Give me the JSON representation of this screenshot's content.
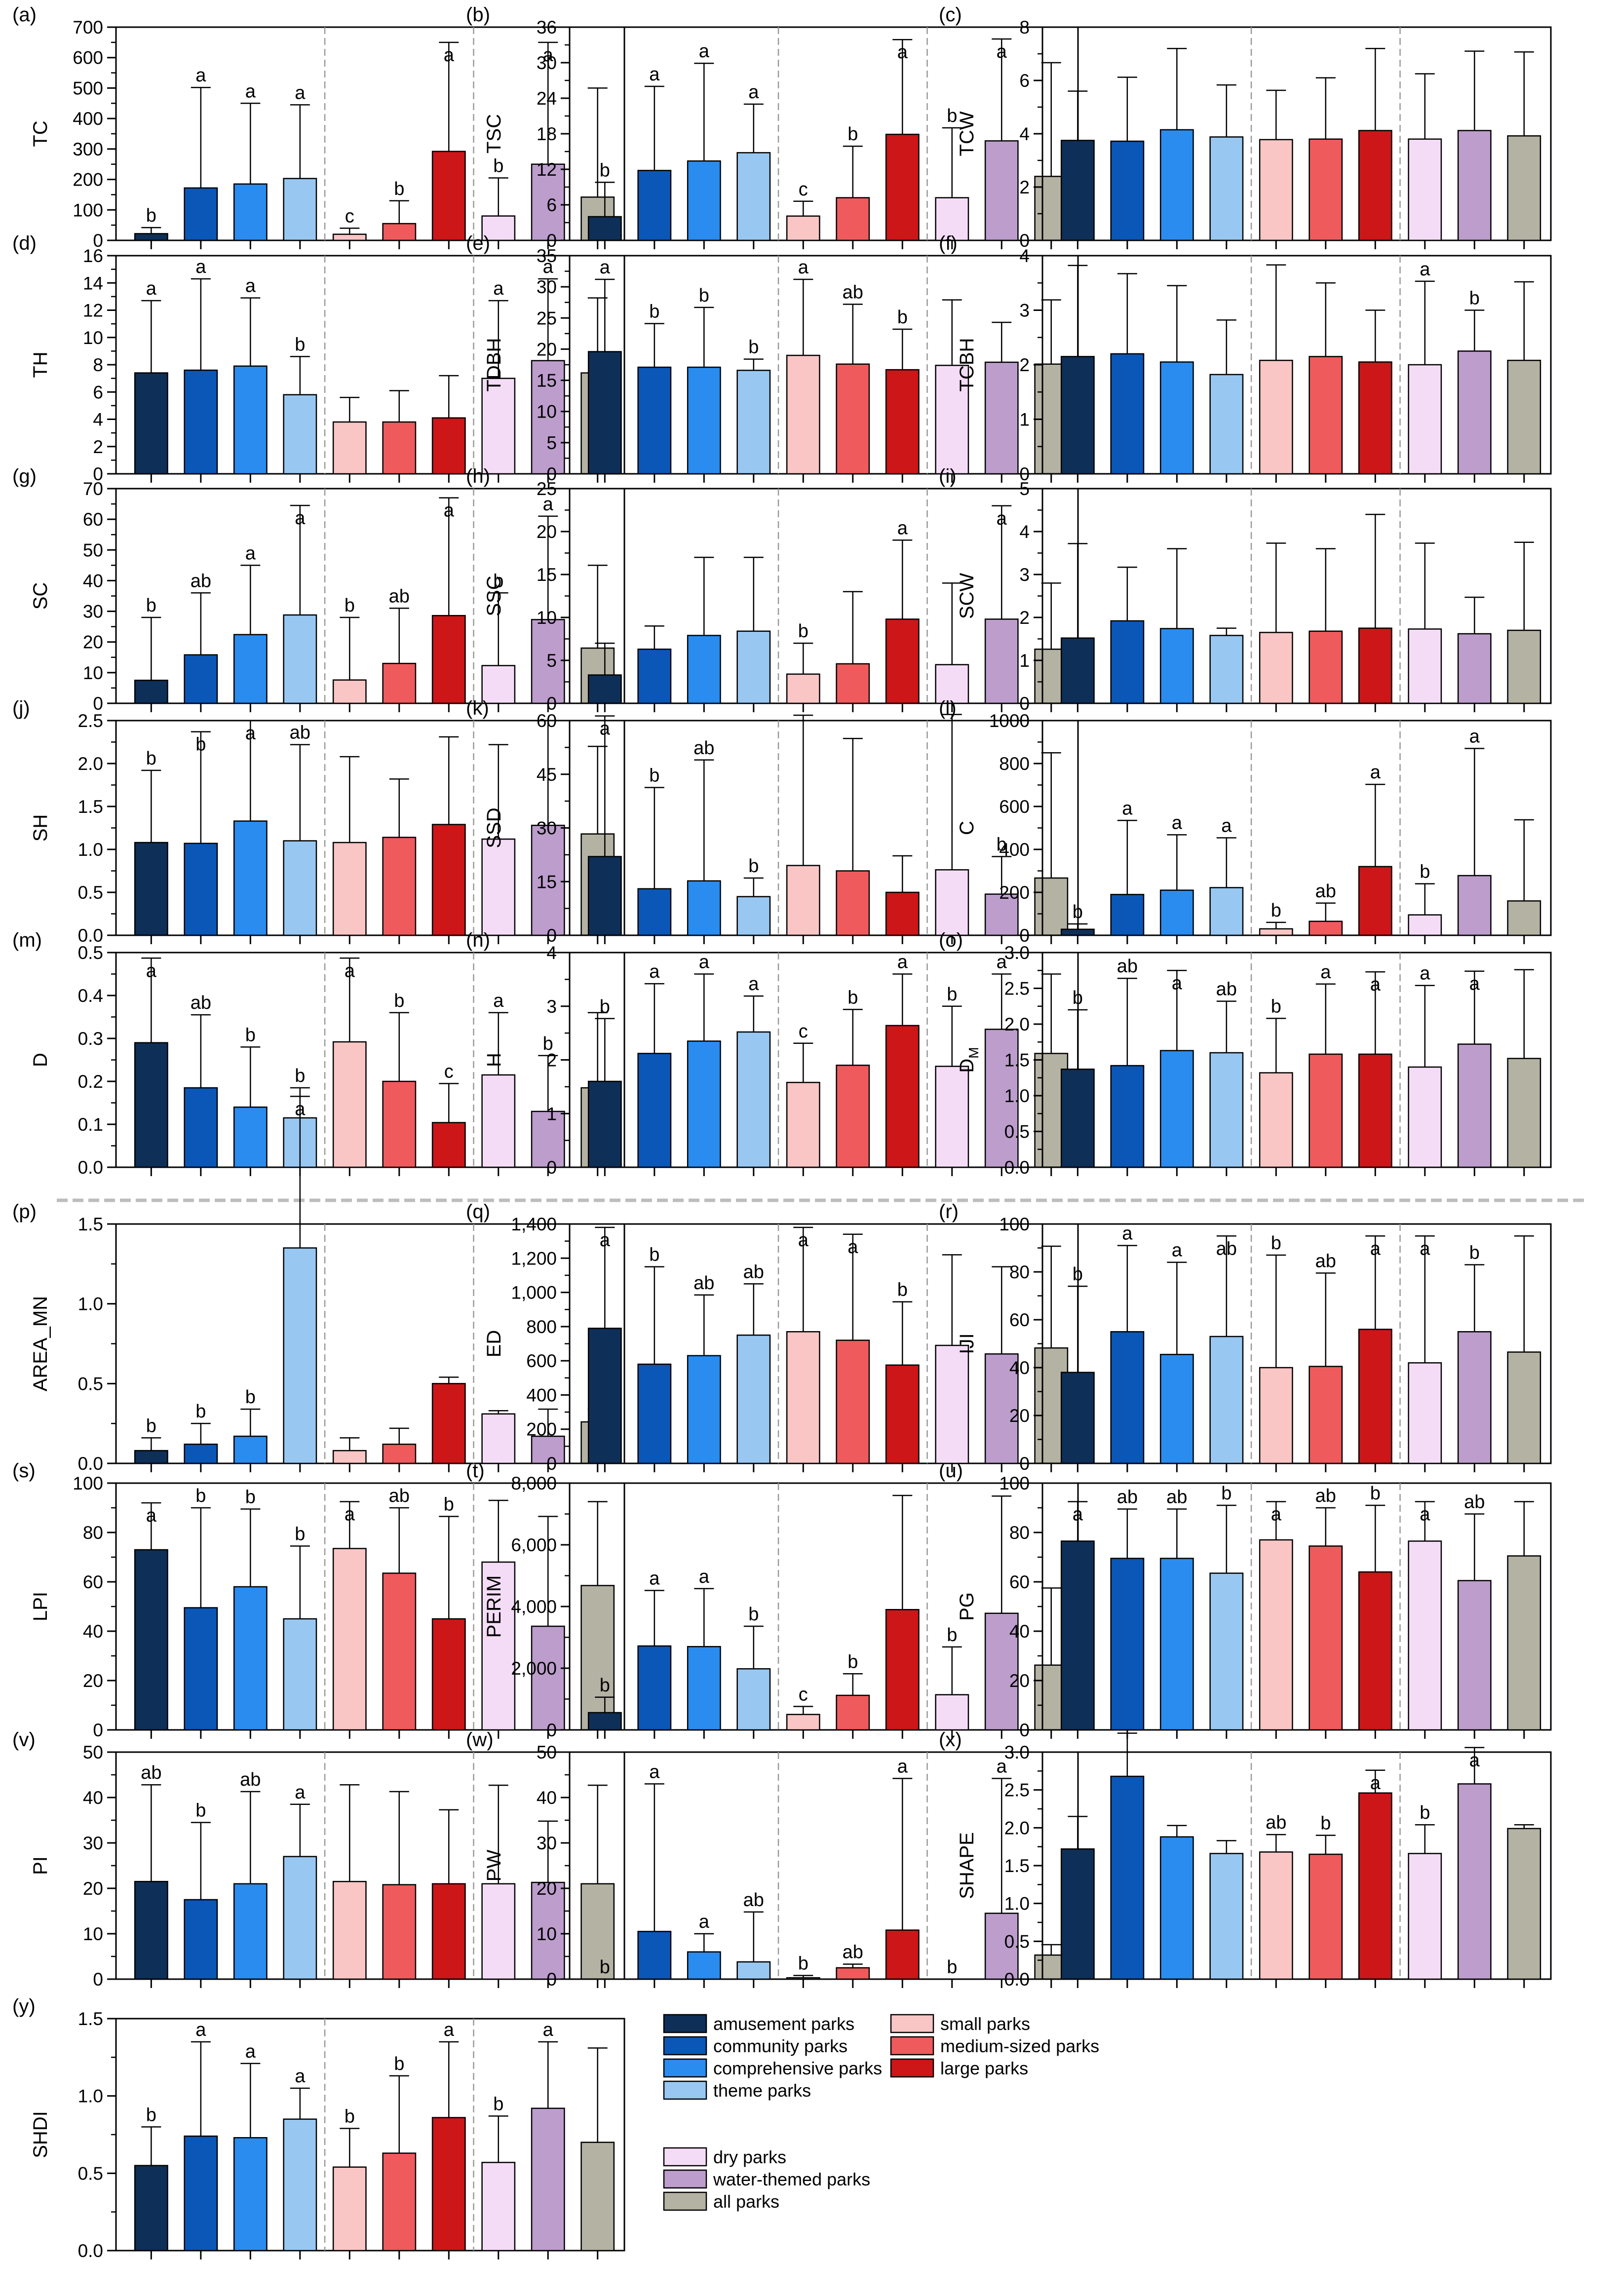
{
  "colors": {
    "amusement": "#0e2f57",
    "community": "#0a57b7",
    "comprehensive": "#2a8cee",
    "theme": "#98c8f2",
    "small": "#f9c5c5",
    "medium": "#ef5a5c",
    "large": "#cc1618",
    "dry": "#f4dcf6",
    "water": "#bc9dcc",
    "all": "#b4b2a3"
  },
  "legend": {
    "amusement": "amusement parks",
    "community": "community parks",
    "comprehensive": "comprehensive parks",
    "theme": "theme parks",
    "small": "small parks",
    "medium": "medium-sized parks",
    "large": "large parks",
    "dry": "dry parks",
    "water": "water-themed parks",
    "all": "all parks"
  },
  "chart_data": [
    {
      "panel": "(a)",
      "type": "bar",
      "ylabel": "TC",
      "ylim": [
        0,
        700
      ],
      "ticks": [
        "0",
        "100",
        "200",
        "300",
        "400",
        "500",
        "600",
        "700"
      ],
      "values": [
        22,
        172,
        185,
        203,
        20,
        55,
        292,
        80,
        250,
        142
      ],
      "errors": [
        20,
        330,
        265,
        242,
        20,
        75,
        358,
        125,
        400,
        358
      ],
      "letters": [
        "b",
        "a",
        "a",
        "a",
        "c",
        "b",
        "a",
        "b",
        "a",
        ""
      ]
    },
    {
      "panel": "(b)",
      "type": "bar",
      "ylabel": "TSC",
      "ylim": [
        0,
        36
      ],
      "ticks": [
        "0",
        "6",
        "12",
        "18",
        "24",
        "30",
        "36"
      ],
      "values": [
        4,
        11.8,
        13.4,
        14.8,
        4.1,
        7.2,
        17.9,
        7.2,
        16.8,
        10.8
      ],
      "errors": [
        5.8,
        14.2,
        16.5,
        8.2,
        2.5,
        8.7,
        16,
        11.8,
        17.2,
        19.2
      ],
      "letters": [
        "b",
        "a",
        "a",
        "a",
        "c",
        "b",
        "a",
        "b",
        "a",
        ""
      ]
    },
    {
      "panel": "(c)",
      "type": "bar",
      "ylabel": "TCW",
      "ylim": [
        0,
        8
      ],
      "ticks": [
        "0",
        "2",
        "4",
        "6",
        "8"
      ],
      "values": [
        3.75,
        3.72,
        4.15,
        3.88,
        3.78,
        3.8,
        4.12,
        3.8,
        4.12,
        3.92
      ],
      "errors": [
        1.85,
        2.4,
        3.05,
        1.95,
        1.85,
        2.3,
        3.08,
        2.45,
        2.98,
        3.15
      ],
      "letters": [
        "",
        "",
        "",
        "",
        "",
        "",
        "",
        "",
        "",
        ""
      ]
    },
    {
      "panel": "(d)",
      "type": "bar",
      "ylabel": "TH",
      "ylim": [
        0,
        16
      ],
      "ticks": [
        "0",
        "2",
        "4",
        "6",
        "8",
        "10",
        "12",
        "14",
        "16"
      ],
      "values": [
        7.4,
        7.6,
        7.9,
        5.8,
        3.8,
        3.8,
        4.1,
        7,
        8.3,
        7.4
      ],
      "errors": [
        5.3,
        6.7,
        5,
        2.8,
        1.8,
        2.3,
        3.1,
        5.7,
        6,
        5.5
      ],
      "letters": [
        "a",
        "a",
        "a",
        "b",
        "",
        "",
        "",
        "a",
        "a",
        ""
      ]
    },
    {
      "panel": "(e)",
      "type": "bar",
      "ylabel": "TDBH",
      "ylim": [
        0,
        35
      ],
      "ticks": [
        "0",
        "5",
        "10",
        "15",
        "20",
        "25",
        "30",
        "35"
      ],
      "values": [
        19.6,
        17.1,
        17.1,
        16.6,
        19,
        17.6,
        16.7,
        17.4,
        17.9,
        17.6
      ],
      "errors": [
        11.6,
        7,
        9.6,
        1.8,
        12.2,
        9.6,
        6.5,
        10.5,
        6.4,
        10.3
      ],
      "letters": [
        "a",
        "b",
        "b",
        "b",
        "a",
        "ab",
        "b",
        "",
        "",
        ""
      ]
    },
    {
      "panel": "(f)",
      "type": "bar",
      "ylabel": "TCBH",
      "ylim": [
        0,
        4
      ],
      "ticks": [
        "0",
        "1",
        "2",
        "3",
        "4"
      ],
      "values": [
        2.15,
        2.2,
        2.05,
        1.82,
        2.08,
        2.15,
        2.05,
        2,
        2.25,
        2.08
      ],
      "errors": [
        1.67,
        1.47,
        1.4,
        1,
        1.75,
        1.35,
        0.95,
        1.53,
        0.75,
        1.44
      ],
      "letters": [
        "",
        "",
        "",
        "",
        "",
        "",
        "",
        "a",
        "b",
        ""
      ]
    },
    {
      "panel": "(g)",
      "type": "bar",
      "ylabel": "SC",
      "ylim": [
        0,
        70
      ],
      "ticks": [
        "0",
        "10",
        "20",
        "30",
        "40",
        "50",
        "60",
        "70"
      ],
      "values": [
        7.5,
        15.8,
        22.4,
        28.8,
        7.6,
        13,
        28.6,
        12.3,
        27.3,
        18
      ],
      "errors": [
        20.5,
        20.2,
        22.6,
        35.7,
        20.4,
        18,
        38.4,
        23.7,
        33.7,
        27
      ],
      "letters": [
        "b",
        "ab",
        "a",
        "a",
        "b",
        "ab",
        "a",
        "b",
        "a",
        ""
      ]
    },
    {
      "panel": "(h)",
      "type": "bar",
      "ylabel": "SSC",
      "ylim": [
        0,
        25
      ],
      "ticks": [
        "0",
        "5",
        "10",
        "15",
        "20",
        "25"
      ],
      "values": [
        3.3,
        6.3,
        7.9,
        8.4,
        3.4,
        4.6,
        9.8,
        4.5,
        9.8,
        6.3
      ],
      "errors": [
        3.7,
        2.7,
        9.1,
        8.6,
        3.6,
        8.4,
        9.2,
        9.5,
        13.2,
        7.7
      ],
      "letters": [
        "",
        "",
        "",
        "",
        "b",
        "",
        "a",
        "",
        "a",
        ""
      ]
    },
    {
      "panel": "(i)",
      "type": "bar",
      "ylabel": "SCW",
      "ylim": [
        0,
        5
      ],
      "ticks": [
        "0",
        "1",
        "2",
        "3",
        "4",
        "5"
      ],
      "values": [
        1.52,
        1.92,
        1.74,
        1.58,
        1.65,
        1.68,
        1.75,
        1.73,
        1.62,
        1.7
      ],
      "errors": [
        2.2,
        1.25,
        1.86,
        0.17,
        2.08,
        1.92,
        2.65,
        2,
        0.85,
        2.05
      ],
      "letters": [
        "",
        "",
        "",
        "",
        "",
        "",
        "",
        "",
        "",
        ""
      ]
    },
    {
      "panel": "(j)",
      "type": "bar",
      "ylabel": "SH",
      "ylim": [
        0,
        2.5
      ],
      "ticks": [
        "0.0",
        "0.5",
        "1.0",
        "1.5",
        "2.0",
        "2.5"
      ],
      "values": [
        1.08,
        1.07,
        1.33,
        1.1,
        1.08,
        1.14,
        1.29,
        1.12,
        1.28,
        1.18
      ],
      "errors": [
        0.84,
        1.3,
        1.17,
        1.12,
        1,
        0.68,
        1.02,
        1.1,
        1.22,
        1.02
      ],
      "letters": [
        "b",
        "b",
        "a",
        "ab",
        "",
        "",
        "",
        "",
        "",
        ""
      ]
    },
    {
      "panel": "(k)",
      "type": "bar",
      "ylabel": "SSD",
      "ylim": [
        0,
        60
      ],
      "ticks": [
        "0",
        "15",
        "30",
        "45",
        "60"
      ],
      "values": [
        22,
        13,
        15.2,
        10.8,
        19.5,
        18,
        12,
        18.3,
        11.5,
        16
      ],
      "errors": [
        39.3,
        28.3,
        33.8,
        5.2,
        42,
        37,
        10.2,
        43.4,
        10.5,
        35
      ],
      "letters": [
        "a",
        "b",
        "ab",
        "b",
        "",
        "",
        "",
        "",
        "b",
        ""
      ]
    },
    {
      "panel": "(l)",
      "type": "bar",
      "ylabel": "C",
      "ylim": [
        0,
        1000
      ],
      "ticks": [
        "0",
        "200",
        "400",
        "600",
        "800",
        "1000"
      ],
      "values": [
        28,
        190,
        210,
        222,
        30,
        65,
        320,
        95,
        278,
        160
      ],
      "errors": [
        25,
        345,
        258,
        232,
        30,
        85,
        383,
        145,
        592,
        378
      ],
      "letters": [
        "b",
        "a",
        "a",
        "a",
        "b",
        "ab",
        "a",
        "b",
        "a",
        ""
      ]
    },
    {
      "panel": "(m)",
      "type": "bar",
      "ylabel": "D",
      "ylim": [
        0,
        0.5
      ],
      "ticks": [
        "0.0",
        "0.1",
        "0.2",
        "0.3",
        "0.4",
        "0.5"
      ],
      "values": [
        0.29,
        0.185,
        0.14,
        0.115,
        0.292,
        0.2,
        0.104,
        0.215,
        0.13,
        0.185
      ],
      "errors": [
        0.197,
        0.17,
        0.14,
        0.07,
        0.195,
        0.16,
        0.091,
        0.145,
        0.13,
        0.175
      ],
      "letters": [
        "a",
        "ab",
        "b",
        "b",
        "a",
        "b",
        "c",
        "a",
        "b",
        ""
      ]
    },
    {
      "panel": "(n)",
      "type": "bar",
      "ylabel": "H",
      "ylim": [
        0,
        4
      ],
      "ticks": [
        "0",
        "1",
        "2",
        "3",
        "4"
      ],
      "values": [
        1.6,
        2.12,
        2.35,
        2.52,
        1.58,
        1.9,
        2.64,
        1.88,
        2.57,
        2.12
      ],
      "errors": [
        1.17,
        1.3,
        1.25,
        0.67,
        0.73,
        1.04,
        0.96,
        1.12,
        1.03,
        1.48
      ],
      "letters": [
        "b",
        "a",
        "a",
        "a",
        "c",
        "b",
        "a",
        "b",
        "a",
        ""
      ]
    },
    {
      "panel": "(o)",
      "type": "bar",
      "ylabel": "DM",
      "ylim": [
        0,
        3
      ],
      "ticks": [
        "0.0",
        "0.5",
        "1.0",
        "1.5",
        "2.0",
        "2.5",
        "3.0"
      ],
      "values": [
        1.37,
        1.42,
        1.63,
        1.6,
        1.32,
        1.58,
        1.58,
        1.4,
        1.72,
        1.52
      ],
      "errors": [
        0.83,
        1.22,
        1.12,
        0.72,
        0.76,
        0.98,
        1.15,
        1.14,
        1.02,
        1.24
      ],
      "letters": [
        "b",
        "ab",
        "a",
        "ab",
        "b",
        "a",
        "a",
        "a",
        "a",
        ""
      ]
    },
    {
      "panel": "(p)",
      "type": "bar",
      "ylabel": "AREA_MN",
      "ylim": [
        0,
        1.5
      ],
      "ticks": [
        "0.0",
        "0.5",
        "1.0",
        "1.5"
      ],
      "values": [
        0.08,
        0.12,
        0.17,
        1.35,
        0.08,
        0.12,
        0.5,
        0.31,
        0.17,
        0.26
      ],
      "errors": [
        0.08,
        0.13,
        0.17,
        0.95,
        0.08,
        0.1,
        0.04,
        0.02,
        0.17,
        0.08
      ],
      "letters": [
        "b",
        "b",
        "b",
        "a",
        "",
        "",
        "",
        "",
        "",
        ""
      ]
    },
    {
      "panel": "(q)",
      "type": "bar",
      "ylabel": "ED",
      "ylim": [
        0,
        1400
      ],
      "ticks": [
        "0",
        "200",
        "400",
        "600",
        "800",
        "1,000",
        "1,200",
        "1,400"
      ],
      "values": [
        790,
        580,
        630,
        750,
        770,
        720,
        575,
        690,
        640,
        675
      ],
      "errors": [
        590,
        570,
        355,
        300,
        610,
        620,
        370,
        530,
        510,
        595
      ],
      "letters": [
        "a",
        "b",
        "ab",
        "ab",
        "a",
        "a",
        "b",
        "",
        "",
        ""
      ]
    },
    {
      "panel": "(r)",
      "type": "bar",
      "ylabel": "IJI",
      "ylim": [
        0,
        100
      ],
      "ticks": [
        "0",
        "20",
        "40",
        "60",
        "80",
        "100"
      ],
      "values": [
        38,
        55,
        45.5,
        53,
        40,
        40.5,
        56,
        42,
        55,
        46.5
      ],
      "errors": [
        36,
        36,
        38.5,
        42,
        47,
        39,
        39,
        53,
        28,
        48.5
      ],
      "letters": [
        "b",
        "a",
        "a",
        "ab",
        "b",
        "ab",
        "a",
        "a",
        "b",
        ""
      ]
    },
    {
      "panel": "(s)",
      "type": "bar",
      "ylabel": "LPI",
      "ylim": [
        0,
        100
      ],
      "ticks": [
        "0",
        "20",
        "40",
        "60",
        "80",
        "100"
      ],
      "values": [
        73,
        49.5,
        58,
        45,
        73.5,
        63.5,
        45,
        68,
        42,
        58.5
      ],
      "errors": [
        19,
        40.5,
        31.5,
        29.5,
        19,
        26.5,
        41.5,
        25,
        44.5,
        34
      ],
      "letters": [
        "a",
        "b",
        "b",
        "b",
        "a",
        "ab",
        "b",
        "",
        "",
        ""
      ]
    },
    {
      "panel": "(t)",
      "type": "bar",
      "ylabel": "PERIM",
      "ylim": [
        0,
        8000
      ],
      "ticks": [
        "0",
        "2,000",
        "4,000",
        "6,000",
        "8,000"
      ],
      "values": [
        560,
        2720,
        2700,
        1980,
        500,
        1120,
        3900,
        1140,
        3780,
        2100
      ],
      "errors": [
        500,
        1800,
        1880,
        1380,
        260,
        700,
        3700,
        1550,
        3800,
        2500
      ],
      "letters": [
        "b",
        "a",
        "a",
        "b",
        "c",
        "b",
        "",
        "b",
        "",
        ""
      ]
    },
    {
      "panel": "(u)",
      "type": "bar",
      "ylabel": "PG",
      "ylim": [
        0,
        100
      ],
      "ticks": [
        "0",
        "20",
        "40",
        "60",
        "80",
        "100"
      ],
      "values": [
        76.5,
        69.5,
        69.5,
        63.5,
        77,
        74.5,
        64,
        76.5,
        60.5,
        70.5
      ],
      "errors": [
        16,
        20,
        20,
        27.5,
        15.5,
        15.5,
        27,
        16,
        27,
        22
      ],
      "letters": [
        "a",
        "ab",
        "ab",
        "b",
        "a",
        "ab",
        "b",
        "a",
        "ab",
        ""
      ]
    },
    {
      "panel": "(v)",
      "type": "bar",
      "ylabel": "PI",
      "ylim": [
        0,
        50
      ],
      "ticks": [
        "0",
        "10",
        "20",
        "30",
        "40",
        "50"
      ],
      "values": [
        21.5,
        17.5,
        21,
        27,
        21.5,
        20.8,
        21,
        21,
        21.3,
        21
      ],
      "errors": [
        21.3,
        17,
        20.3,
        11.5,
        21.3,
        20.5,
        16.3,
        21.7,
        13.5,
        21.7
      ],
      "letters": [
        "ab",
        "b",
        "ab",
        "a",
        "",
        "",
        "",
        "",
        "",
        ""
      ]
    },
    {
      "panel": "(w)",
      "type": "bar",
      "ylabel": "PW",
      "ylim": [
        0,
        50
      ],
      "ticks": [
        "0",
        "10",
        "20",
        "30",
        "40",
        "50"
      ],
      "values": [
        0,
        10.5,
        6,
        3.8,
        0.3,
        2.5,
        10.8,
        0,
        14.5,
        5.3
      ],
      "errors": [
        0,
        32.5,
        4,
        11,
        0.5,
        0.8,
        33.4,
        0,
        29.7,
        2.3
      ],
      "letters": [
        "b",
        "a",
        "a",
        "ab",
        "b",
        "ab",
        "a",
        "b",
        "a",
        ""
      ]
    },
    {
      "panel": "(x)",
      "type": "bar",
      "ylabel": "SHAPE",
      "ylim": [
        0,
        3
      ],
      "ticks": [
        "0.0",
        "0.5",
        "1.0",
        "1.5",
        "2.0",
        "2.5",
        "3.0"
      ],
      "values": [
        1.72,
        2.68,
        1.88,
        1.66,
        1.68,
        1.65,
        2.46,
        1.66,
        2.58,
        1.99
      ],
      "errors": [
        0.43,
        0.57,
        0.15,
        0.17,
        0.23,
        0.25,
        0.3,
        0.38,
        0.48,
        0.05
      ],
      "letters": [
        "",
        "",
        "",
        "",
        "ab",
        "b",
        "a",
        "b",
        "a",
        ""
      ]
    },
    {
      "panel": "(y)",
      "type": "bar",
      "ylabel": "SHDI",
      "ylim": [
        0,
        1.5
      ],
      "ticks": [
        "0.0",
        "0.5",
        "1.0",
        "1.5"
      ],
      "values": [
        0.55,
        0.74,
        0.73,
        0.85,
        0.54,
        0.63,
        0.86,
        0.57,
        0.92,
        0.7
      ],
      "errors": [
        0.25,
        0.61,
        0.48,
        0.2,
        0.25,
        0.5,
        0.49,
        0.3,
        0.43,
        0.61
      ],
      "letters": [
        "b",
        "a",
        "a",
        "a",
        "b",
        "b",
        "a",
        "b",
        "a",
        ""
      ]
    }
  ]
}
